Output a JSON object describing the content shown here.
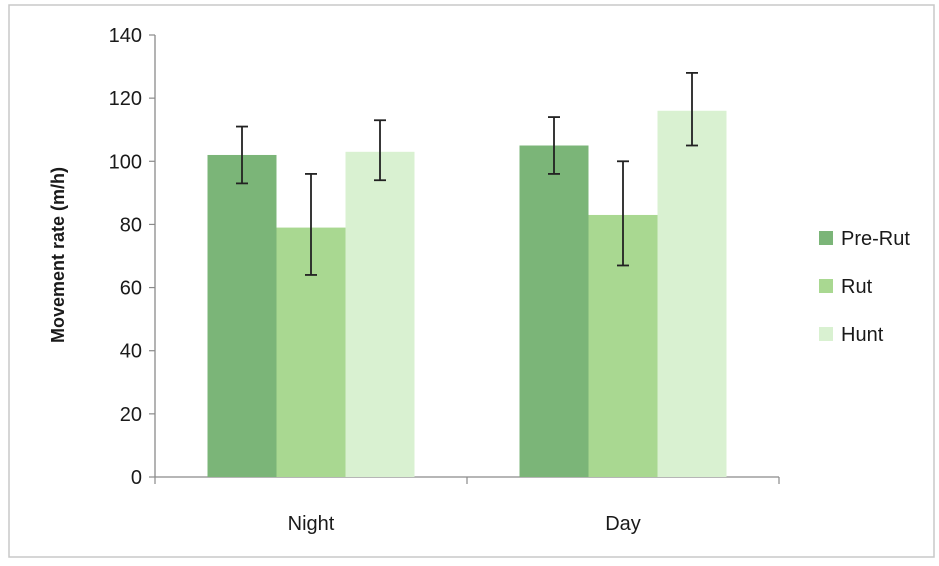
{
  "chart_data": {
    "type": "bar",
    "title": "",
    "xlabel": "",
    "ylabel": "Movement rate (m/h)",
    "ylim": [
      0,
      140
    ],
    "yticks": [
      0,
      20,
      40,
      60,
      80,
      100,
      120,
      140
    ],
    "grid": false,
    "legend_position": "right",
    "categories": [
      "Night",
      "Day"
    ],
    "series": [
      {
        "name": "Pre-Rut",
        "color": "#7bb578",
        "values": [
          102,
          105
        ],
        "error_low": [
          93,
          96
        ],
        "error_high": [
          111,
          114
        ]
      },
      {
        "name": "Rut",
        "color": "#a9d891",
        "values": [
          79,
          83
        ],
        "error_low": [
          64,
          67
        ],
        "error_high": [
          96,
          100
        ]
      },
      {
        "name": "Hunt",
        "color": "#d9f1d1",
        "values": [
          103,
          116
        ],
        "error_low": [
          94,
          105
        ],
        "error_high": [
          113,
          128
        ]
      }
    ]
  }
}
